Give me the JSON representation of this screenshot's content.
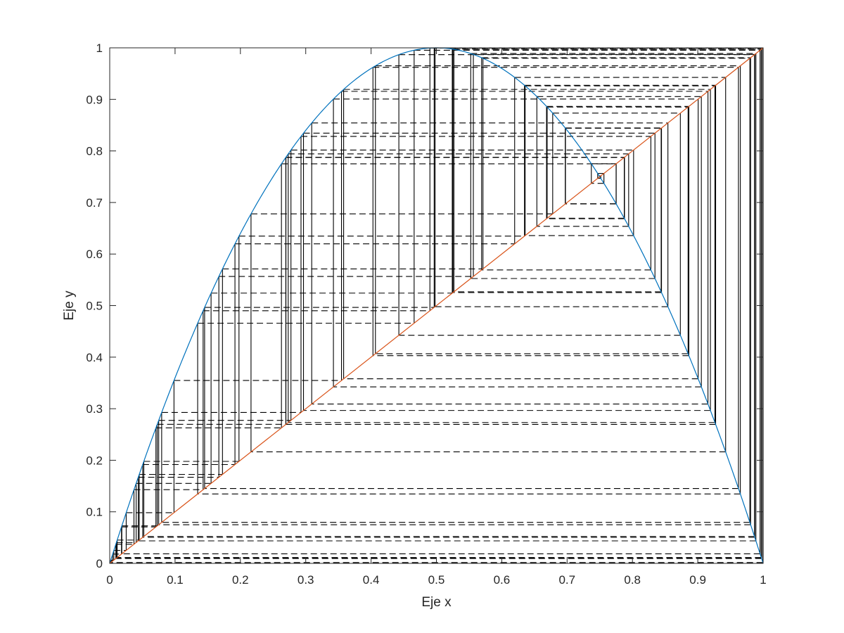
{
  "chart_data": {
    "type": "line",
    "title": "",
    "xlabel": "Eje x",
    "ylabel": "Eje y",
    "xlim": [
      0,
      1
    ],
    "ylim": [
      0,
      1
    ],
    "xticks": [
      "0",
      "0.1",
      "0.2",
      "0.3",
      "0.4",
      "0.5",
      "0.6",
      "0.7",
      "0.8",
      "0.9",
      "1"
    ],
    "yticks": [
      "0",
      "0.1",
      "0.2",
      "0.3",
      "0.4",
      "0.5",
      "0.6",
      "0.7",
      "0.8",
      "0.9",
      "1"
    ],
    "grid": false,
    "box": true,
    "series": [
      {
        "kind": "function",
        "formula": "y = 4x(1-x)",
        "r": 4,
        "x_range": [
          0,
          1
        ],
        "color": "#0072BD"
      },
      {
        "kind": "identity",
        "formula": "y = x",
        "x_range": [
          0,
          1
        ],
        "color": "#D95319"
      },
      {
        "kind": "cobweb",
        "map": "logistic",
        "r": 4,
        "x0": 0.75,
        "x0_offset": 0.0001,
        "iterations": 110,
        "color": "#000000",
        "vertical_style": "solid",
        "horizontal_style": "dashed"
      }
    ]
  },
  "colors": {
    "background": "#ffffff",
    "axes": "#262626",
    "curve": "#0072BD",
    "diagonal": "#D95319",
    "cobweb": "#000000"
  }
}
